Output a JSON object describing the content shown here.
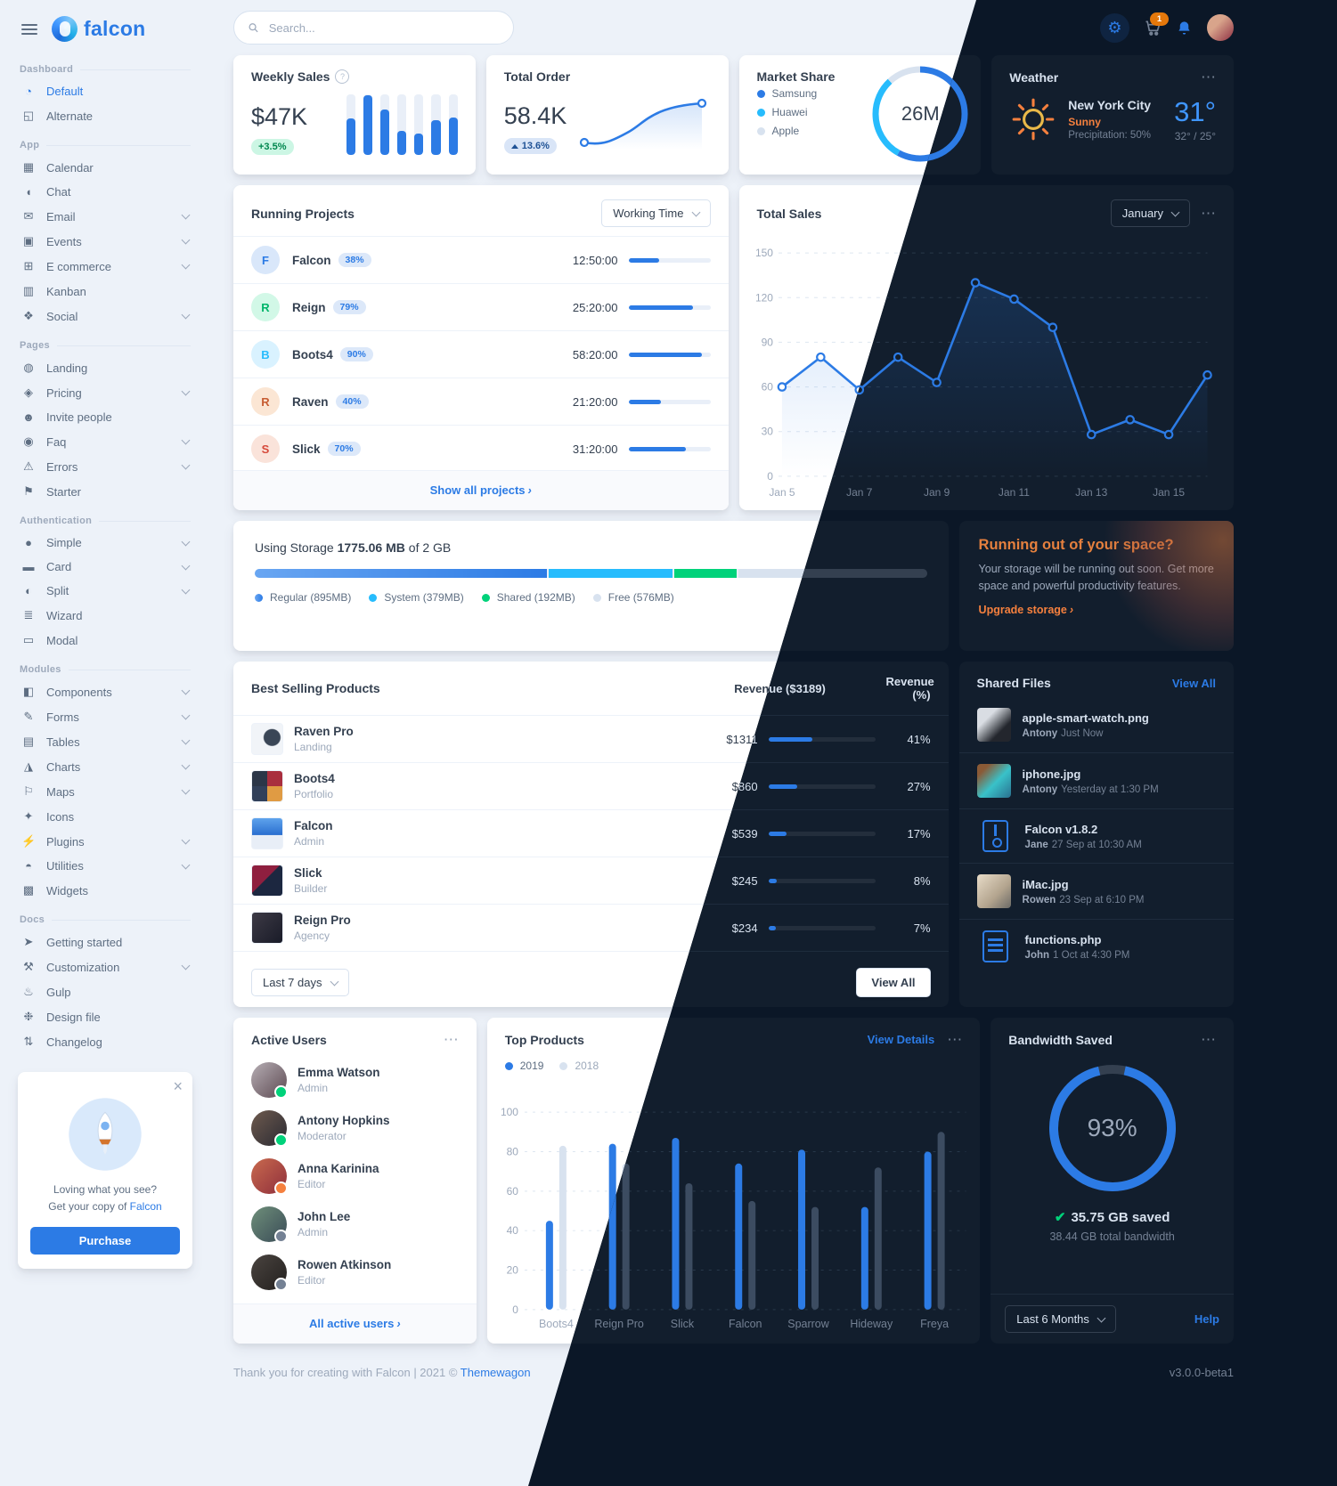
{
  "brand": {
    "name": "falcon"
  },
  "palette": {
    "primary": "#2c7be5",
    "info": "#27bcfd",
    "success": "#00d27a",
    "warning": "#f5803e",
    "danger": "#e63757",
    "orange_badge": "#e5780b"
  },
  "navbar": {
    "search_placeholder": "Search...",
    "cart_badge": "1"
  },
  "sidebar": {
    "sections": [
      {
        "label": "Dashboard",
        "items": [
          {
            "label": "Default",
            "icon": "chart-pie",
            "active": true
          },
          {
            "label": "Alternate",
            "icon": "chart-area"
          }
        ]
      },
      {
        "label": "App",
        "items": [
          {
            "label": "Calendar",
            "icon": "calendar"
          },
          {
            "label": "Chat",
            "icon": "chat"
          },
          {
            "label": "Email",
            "icon": "email",
            "chevron": true
          },
          {
            "label": "Events",
            "icon": "events",
            "chevron": true
          },
          {
            "label": "E commerce",
            "icon": "cart",
            "chevron": true
          },
          {
            "label": "Kanban",
            "icon": "kanban"
          },
          {
            "label": "Social",
            "icon": "social",
            "chevron": true
          }
        ]
      },
      {
        "label": "Pages",
        "items": [
          {
            "label": "Landing",
            "icon": "globe"
          },
          {
            "label": "Pricing",
            "icon": "tags",
            "chevron": true
          },
          {
            "label": "Invite people",
            "icon": "user-plus"
          },
          {
            "label": "Faq",
            "icon": "question",
            "chevron": true
          },
          {
            "label": "Errors",
            "icon": "warning",
            "chevron": true
          },
          {
            "label": "Starter",
            "icon": "flag"
          }
        ]
      },
      {
        "label": "Authentication",
        "items": [
          {
            "label": "Simple",
            "icon": "circle",
            "chevron": true
          },
          {
            "label": "Card",
            "icon": "card",
            "chevron": true
          },
          {
            "label": "Split",
            "icon": "split",
            "chevron": true
          },
          {
            "label": "Wizard",
            "icon": "wizard"
          },
          {
            "label": "Modal",
            "icon": "modal"
          }
        ]
      },
      {
        "label": "Modules",
        "items": [
          {
            "label": "Components",
            "icon": "components",
            "chevron": true
          },
          {
            "label": "Forms",
            "icon": "forms",
            "chevron": true
          },
          {
            "label": "Tables",
            "icon": "tables",
            "chevron": true
          },
          {
            "label": "Charts",
            "icon": "charts",
            "chevron": true
          },
          {
            "label": "Maps",
            "icon": "maps",
            "chevron": true
          },
          {
            "label": "Icons",
            "icon": "icons"
          },
          {
            "label": "Plugins",
            "icon": "plugins",
            "chevron": true
          },
          {
            "label": "Utilities",
            "icon": "utilities",
            "chevron": true
          },
          {
            "label": "Widgets",
            "icon": "widgets"
          }
        ]
      },
      {
        "label": "Docs",
        "items": [
          {
            "label": "Getting started",
            "icon": "rocket"
          },
          {
            "label": "Customization",
            "icon": "wrench",
            "chevron": true
          },
          {
            "label": "Gulp",
            "icon": "gulp"
          },
          {
            "label": "Design file",
            "icon": "palette"
          },
          {
            "label": "Changelog",
            "icon": "branch"
          }
        ]
      }
    ],
    "promo": {
      "line1": "Loving what you see?",
      "line2": "Get your copy of",
      "brand_link": "Falcon",
      "button": "Purchase"
    }
  },
  "kpi": {
    "weekly_sales": {
      "title": "Weekly Sales",
      "value": "$47K",
      "badge": "+3.5%",
      "bars": [
        60,
        98,
        75,
        40,
        35,
        58,
        62
      ]
    },
    "total_order": {
      "title": "Total Order",
      "value": "58.4K",
      "badge": "13.6%"
    },
    "market_share": {
      "title": "Market Share",
      "total": "26M",
      "segments_pct_estimated": [
        58,
        30,
        12
      ],
      "legend": [
        {
          "label": "Samsung",
          "color": "#2c7be5"
        },
        {
          "label": "Huawei",
          "color": "#27bcfd"
        },
        {
          "label": "Apple",
          "color": "#d8e2ef"
        }
      ]
    },
    "weather": {
      "title": "Weather",
      "city": "New York City",
      "condition": "Sunny",
      "precipitation": "Precipitation: 50%",
      "temp": "31°",
      "hilo": "32° / 25°"
    }
  },
  "running_projects": {
    "title": "Running Projects",
    "select": "Working Time",
    "footer_link": "Show all projects",
    "rows": [
      {
        "initial": "F",
        "name": "Falcon",
        "pct": "38%",
        "time": "12:50:00",
        "progress": 38,
        "color": "#2c7be5",
        "bg": "#d9e7fa"
      },
      {
        "initial": "R",
        "name": "Reign",
        "pct": "79%",
        "time": "25:20:00",
        "progress": 79,
        "color": "#00b56a",
        "bg": "#d2f8e7"
      },
      {
        "initial": "B",
        "name": "Boots4",
        "pct": "90%",
        "time": "58:20:00",
        "progress": 90,
        "color": "#27bcfd",
        "bg": "#d9f2ff"
      },
      {
        "initial": "R",
        "name": "Raven",
        "pct": "40%",
        "time": "21:20:00",
        "progress": 40,
        "color": "#c75d33",
        "bg": "#fbe6d4"
      },
      {
        "initial": "S",
        "name": "Slick",
        "pct": "70%",
        "time": "31:20:00",
        "progress": 70,
        "color": "#d6493a",
        "bg": "#fae3da"
      }
    ]
  },
  "total_sales": {
    "title": "Total Sales",
    "select": "January",
    "x_labels": [
      "Jan 5",
      "Jan 7",
      "Jan 9",
      "Jan 11",
      "Jan 13",
      "Jan 15"
    ],
    "y_ticks": [
      0,
      30,
      60,
      90,
      120,
      150
    ],
    "values": [
      60,
      80,
      58,
      80,
      63,
      130,
      119,
      100,
      28,
      38,
      28,
      68
    ]
  },
  "storage": {
    "prefix": "Using Storage",
    "used": "1775.06 MB",
    "middle": "of",
    "total": "2 GB",
    "total_mb": 2048,
    "segments": [
      {
        "key": "regular",
        "label": "Regular (895MB)",
        "mb": 895
      },
      {
        "key": "system",
        "label": "System (379MB)",
        "mb": 379
      },
      {
        "key": "shared",
        "label": "Shared (192MB)",
        "mb": 192
      },
      {
        "key": "free",
        "label": "Free (576MB)",
        "mb": 576
      }
    ]
  },
  "space_promo": {
    "title": "Running out of your space?",
    "body": "Your storage will be running out soon. Get more space and powerful productivity features.",
    "link": "Upgrade storage"
  },
  "best_selling": {
    "title": "Best Selling Products",
    "col_revenue": "Revenue ($3189)",
    "col_pct": "Revenue (%)",
    "select": "Last 7 days",
    "button": "View All",
    "rows": [
      {
        "name": "Raven Pro",
        "category": "Landing",
        "revenue": "$1311",
        "pct": "41%",
        "progress": 41,
        "kind": "raven"
      },
      {
        "name": "Boots4",
        "category": "Portfolio",
        "revenue": "$860",
        "pct": "27%",
        "progress": 27,
        "kind": "boots4"
      },
      {
        "name": "Falcon",
        "category": "Admin",
        "revenue": "$539",
        "pct": "17%",
        "progress": 17,
        "kind": "falcon"
      },
      {
        "name": "Slick",
        "category": "Builder",
        "revenue": "$245",
        "pct": "8%",
        "progress": 8,
        "kind": "slick"
      },
      {
        "name": "Reign Pro",
        "category": "Agency",
        "revenue": "$234",
        "pct": "7%",
        "progress": 7,
        "kind": "reign"
      }
    ]
  },
  "shared_files": {
    "title": "Shared Files",
    "link": "View All",
    "files": [
      {
        "name": "apple-smart-watch.png",
        "owner": "Antony",
        "time": "Just Now",
        "kind": "watch"
      },
      {
        "name": "iphone.jpg",
        "owner": "Antony",
        "time": "Yesterday at 1:30 PM",
        "kind": "iphone"
      },
      {
        "name": "Falcon v1.8.2",
        "owner": "Jane",
        "time": "27 Sep at 10:30 AM",
        "kind": "zip"
      },
      {
        "name": "iMac.jpg",
        "owner": "Rowen",
        "time": "23 Sep at 6:10 PM",
        "kind": "imac"
      },
      {
        "name": "functions.php",
        "owner": "John",
        "time": "1 Oct at 4:30 PM",
        "kind": "php"
      }
    ]
  },
  "active_users": {
    "title": "Active Users",
    "footer_link": "All active users",
    "users": [
      {
        "name": "Emma Watson",
        "role": "Admin",
        "status": "#00d27a",
        "kind": "u1"
      },
      {
        "name": "Antony Hopkins",
        "role": "Moderator",
        "status": "#00d27a",
        "kind": "u2"
      },
      {
        "name": "Anna Karinina",
        "role": "Editor",
        "status": "#f5803e",
        "kind": "u3"
      },
      {
        "name": "John Lee",
        "role": "Admin",
        "status": "#748194",
        "kind": "u4"
      },
      {
        "name": "Rowen Atkinson",
        "role": "Editor",
        "status": "#748194",
        "kind": "u5"
      }
    ]
  },
  "top_products": {
    "title": "Top Products",
    "link": "View Details",
    "legend": [
      "2019",
      "2018"
    ],
    "categories": [
      "Boots4",
      "Reign Pro",
      "Slick",
      "Falcon",
      "Sparrow",
      "Hideway",
      "Freya"
    ],
    "series": [
      {
        "name": "2019",
        "values": [
          45,
          84,
          87,
          74,
          81,
          52,
          80
        ]
      },
      {
        "name": "2018",
        "values": [
          83,
          74,
          64,
          55,
          52,
          72,
          90
        ]
      }
    ],
    "y_ticks": [
      0,
      20,
      40,
      60,
      80,
      100
    ]
  },
  "bandwidth": {
    "title": "Bandwidth Saved",
    "pct": "93%",
    "pct_num": 93,
    "saved": "35.75 GB saved",
    "total": "38.44 GB total bandwidth",
    "select": "Last 6 Months",
    "help": "Help"
  },
  "page_footer": {
    "text": "Thank you for creating with Falcon | 2021 © ",
    "link": "Themewagon",
    "version": "v3.0.0-beta1"
  }
}
